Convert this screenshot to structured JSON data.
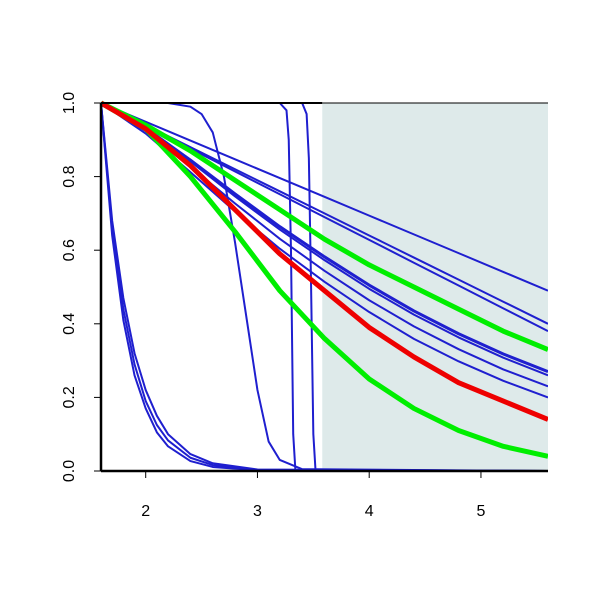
{
  "chart_data": {
    "type": "line",
    "xlim": [
      1.6,
      5.6
    ],
    "ylim": [
      0,
      1
    ],
    "xticks": [
      2,
      3,
      4,
      5
    ],
    "yticks": [
      {
        "value": 0,
        "label": "0.0"
      },
      0.2,
      0.4,
      0.6,
      0.8,
      {
        "value": 1,
        "label": "1.0"
      }
    ],
    "shaded_region": {
      "xlim": [
        3.58,
        5.6
      ],
      "color": "#deeaea"
    },
    "series": [
      {
        "color": "#1f1fcf",
        "width": 2,
        "x": [
          1.6,
          2.0,
          2.4,
          2.8,
          3.2,
          3.6,
          4.0,
          4.4,
          4.8,
          5.2,
          5.6
        ],
        "values": [
          1,
          0.949,
          0.898,
          0.847,
          0.796,
          0.745,
          0.694,
          0.643,
          0.592,
          0.541,
          0.49
        ]
      },
      {
        "color": "#1f1fcf",
        "width": 2,
        "x": [
          1.6,
          2.0,
          2.4,
          2.8,
          3.2,
          3.6,
          4.0,
          4.4,
          4.8,
          5.2,
          5.6
        ],
        "values": [
          1,
          0.94,
          0.88,
          0.82,
          0.76,
          0.7,
          0.64,
          0.58,
          0.52,
          0.46,
          0.4
        ]
      },
      {
        "color": "#1f1fcf",
        "width": 2,
        "x": [
          1.6,
          2.0,
          2.4,
          2.8,
          3.2,
          3.6,
          4.0,
          4.4,
          4.8,
          5.2,
          5.6
        ],
        "values": [
          1,
          0.938,
          0.876,
          0.814,
          0.752,
          0.69,
          0.628,
          0.566,
          0.504,
          0.442,
          0.38
        ]
      },
      {
        "color": "#1f1fcf",
        "width": 3,
        "x": [
          1.6,
          2.0,
          2.4,
          2.8,
          3.2,
          3.6,
          4.0,
          4.4,
          4.8,
          5.2,
          5.6
        ],
        "values": [
          1,
          0.932,
          0.845,
          0.753,
          0.664,
          0.582,
          0.505,
          0.435,
          0.373,
          0.318,
          0.27
        ]
      },
      {
        "color": "#1f1fcf",
        "width": 2,
        "x": [
          1.6,
          2.0,
          2.4,
          2.8,
          3.2,
          3.6,
          4.0,
          4.4,
          4.8,
          5.2,
          5.6
        ],
        "values": [
          1,
          0.93,
          0.841,
          0.746,
          0.656,
          0.573,
          0.495,
          0.425,
          0.363,
          0.308,
          0.26
        ]
      },
      {
        "color": "#1f1fcf",
        "width": 2,
        "x": [
          1.6,
          2.0,
          2.4,
          2.8,
          3.2,
          3.6,
          4.0,
          4.4,
          4.8,
          5.2,
          5.6
        ],
        "values": [
          1,
          0.924,
          0.827,
          0.727,
          0.631,
          0.544,
          0.464,
          0.393,
          0.331,
          0.276,
          0.23
        ]
      },
      {
        "color": "#1f1fcf",
        "width": 2,
        "x": [
          1.6,
          2.0,
          2.4,
          2.8,
          3.2,
          3.6,
          4.0,
          4.4,
          4.8,
          5.2,
          5.6
        ],
        "values": [
          1,
          0.917,
          0.812,
          0.705,
          0.604,
          0.514,
          0.432,
          0.359,
          0.298,
          0.245,
          0.2
        ]
      },
      {
        "color": "#1f1fcf",
        "width": 2,
        "x": [
          1.6,
          1.7,
          1.8,
          1.9,
          2.0,
          2.1,
          2.2,
          2.4,
          2.6,
          3.0,
          5.6
        ],
        "values": [
          1,
          0.68,
          0.47,
          0.32,
          0.22,
          0.15,
          0.1,
          0.046,
          0.021,
          0.004,
          0
        ]
      },
      {
        "color": "#1f1fcf",
        "width": 2,
        "x": [
          1.6,
          1.7,
          1.8,
          1.9,
          2.0,
          2.1,
          2.2,
          2.4,
          2.6,
          3.0,
          5.6
        ],
        "values": [
          1,
          0.66,
          0.44,
          0.29,
          0.19,
          0.125,
          0.083,
          0.036,
          0.016,
          0.003,
          0
        ]
      },
      {
        "color": "#1f1fcf",
        "width": 2,
        "x": [
          1.6,
          1.7,
          1.8,
          1.9,
          2.0,
          2.1,
          2.2,
          2.4,
          2.6,
          3.0,
          5.6
        ],
        "values": [
          1,
          0.64,
          0.41,
          0.26,
          0.17,
          0.105,
          0.067,
          0.027,
          0.011,
          0.002,
          0
        ]
      },
      {
        "color": "#1f1fcf",
        "width": 2,
        "x": [
          1.6,
          2.2,
          2.4,
          2.5,
          2.6,
          2.7,
          2.8,
          2.9,
          3.0,
          3.1,
          3.2,
          3.4,
          5.6
        ],
        "values": [
          1,
          1,
          0.99,
          0.97,
          0.92,
          0.8,
          0.62,
          0.42,
          0.22,
          0.08,
          0.03,
          0.005,
          0
        ]
      },
      {
        "color": "#1f1fcf",
        "width": 2,
        "x": [
          1.6,
          3.2,
          3.26,
          3.28,
          3.3,
          3.32,
          3.34,
          5.6
        ],
        "values": [
          1,
          1,
          0.98,
          0.9,
          0.6,
          0.1,
          0,
          0
        ]
      },
      {
        "color": "#1f1fcf",
        "width": 2,
        "x": [
          1.6,
          3.4,
          3.44,
          3.46,
          3.48,
          3.5,
          3.52,
          5.6
        ],
        "values": [
          1,
          1,
          0.97,
          0.85,
          0.5,
          0.1,
          0,
          0
        ]
      },
      {
        "color": "#00ee00",
        "width": 5,
        "x": [
          1.6,
          2.0,
          2.4,
          2.8,
          3.2,
          3.6,
          4.0,
          4.4,
          4.8,
          5.2,
          5.6
        ],
        "values": [
          1,
          0.94,
          0.87,
          0.79,
          0.71,
          0.63,
          0.56,
          0.5,
          0.44,
          0.38,
          0.33
        ]
      },
      {
        "color": "#00ee00",
        "width": 5,
        "x": [
          1.6,
          2.0,
          2.4,
          2.8,
          3.2,
          3.6,
          4.0,
          4.4,
          4.8,
          5.2,
          5.6
        ],
        "values": [
          1,
          0.93,
          0.8,
          0.65,
          0.49,
          0.36,
          0.25,
          0.17,
          0.11,
          0.067,
          0.04
        ]
      },
      {
        "color": "#ee0000",
        "width": 5,
        "x": [
          1.6,
          2.0,
          2.4,
          2.8,
          3.2,
          3.6,
          4.0,
          4.4,
          4.8,
          5.2,
          5.6
        ],
        "values": [
          1,
          0.93,
          0.83,
          0.71,
          0.59,
          0.49,
          0.39,
          0.31,
          0.24,
          0.19,
          0.14
        ]
      }
    ]
  }
}
